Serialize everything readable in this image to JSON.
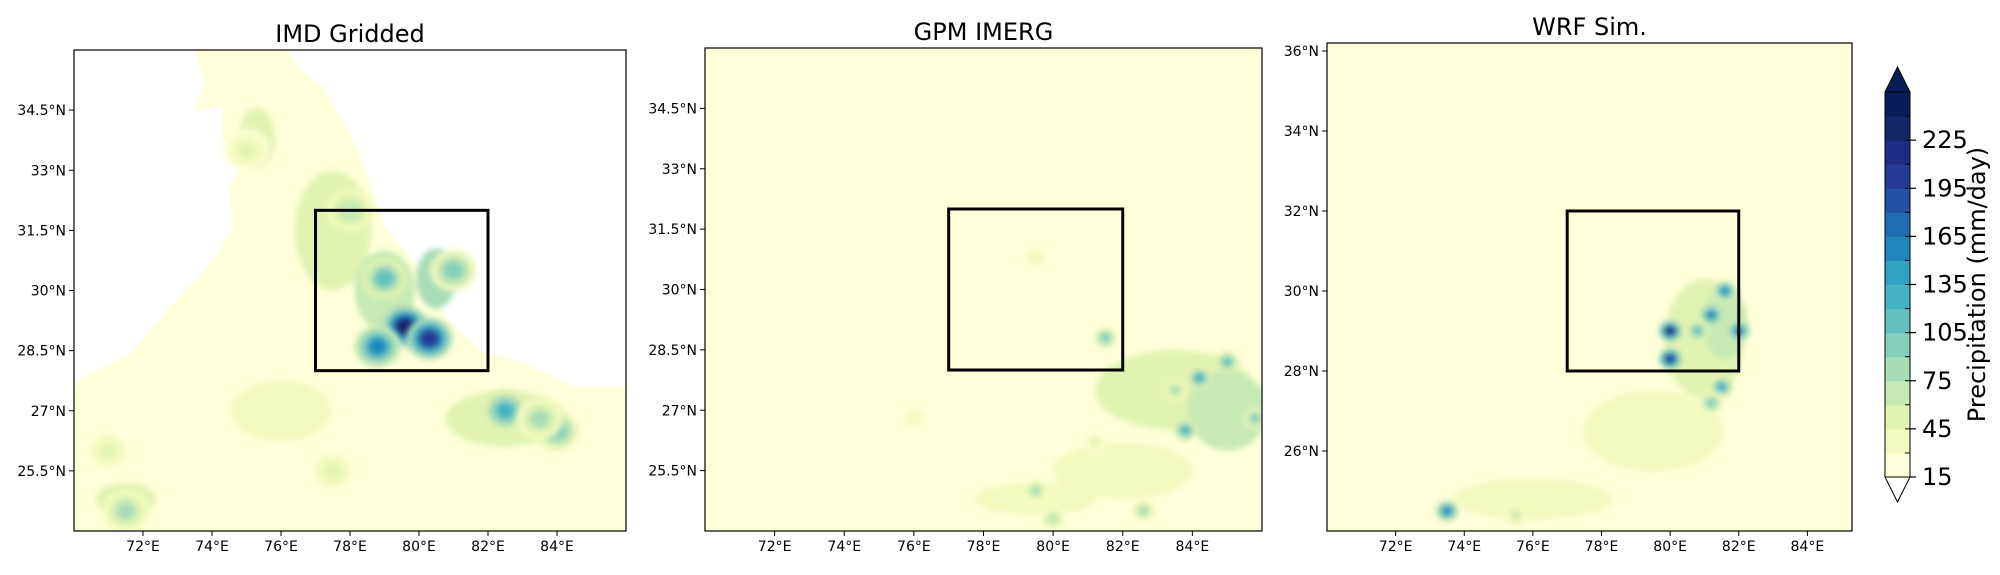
{
  "chart_data": [
    {
      "type": "heatmap",
      "title": "IMD Gridded",
      "xticks": [
        "72°E",
        "74°E",
        "76°E",
        "78°E",
        "80°E",
        "82°E",
        "84°E"
      ],
      "yticks": [
        "34.5°N",
        "33°N",
        "31.5°N",
        "30°N",
        "28.5°N",
        "27°N",
        "25.5°N"
      ],
      "box": {
        "lon": [
          77,
          82
        ],
        "lat": [
          28,
          32
        ]
      },
      "land_mask": "precipitation shown only over Indian territory; area outside left white",
      "hotspots": [
        {
          "lon": 79.6,
          "lat": 29.1,
          "value": 225
        },
        {
          "lon": 80.3,
          "lat": 28.8,
          "value": 200
        },
        {
          "lon": 78.8,
          "lat": 28.6,
          "value": 150
        },
        {
          "lon": 79.0,
          "lat": 30.3,
          "value": 110
        },
        {
          "lon": 81.0,
          "lat": 30.5,
          "value": 90
        },
        {
          "lon": 78.0,
          "lat": 32.0,
          "value": 70
        },
        {
          "lon": 82.5,
          "lat": 27.0,
          "value": 120
        },
        {
          "lon": 84.0,
          "lat": 26.5,
          "value": 100
        },
        {
          "lon": 83.5,
          "lat": 26.8,
          "value": 80
        },
        {
          "lon": 75.0,
          "lat": 33.5,
          "value": 45
        },
        {
          "lon": 71.5,
          "lat": 24.5,
          "value": 80
        },
        {
          "lon": 71.0,
          "lat": 26.0,
          "value": 50
        },
        {
          "lon": 77.5,
          "lat": 25.5,
          "value": 50
        }
      ]
    },
    {
      "type": "heatmap",
      "title": "GPM IMERG",
      "xticks": [
        "72°E",
        "74°E",
        "76°E",
        "78°E",
        "80°E",
        "82°E",
        "84°E"
      ],
      "yticks": [
        "34.5°N",
        "33°N",
        "31.5°N",
        "30°N",
        "28.5°N",
        "27°N",
        "25.5°N"
      ],
      "box": {
        "lon": [
          77,
          82
        ],
        "lat": [
          28,
          32
        ]
      },
      "hotspots": [
        {
          "lon": 84.2,
          "lat": 27.8,
          "value": 130
        },
        {
          "lon": 85.0,
          "lat": 28.2,
          "value": 110
        },
        {
          "lon": 83.8,
          "lat": 26.5,
          "value": 120
        },
        {
          "lon": 85.8,
          "lat": 26.8,
          "value": 90
        },
        {
          "lon": 83.5,
          "lat": 27.5,
          "value": 80
        },
        {
          "lon": 81.5,
          "lat": 28.8,
          "value": 100
        },
        {
          "lon": 79.5,
          "lat": 25.0,
          "value": 75
        },
        {
          "lon": 80.0,
          "lat": 24.3,
          "value": 70
        },
        {
          "lon": 82.6,
          "lat": 24.5,
          "value": 80
        },
        {
          "lon": 81.2,
          "lat": 26.2,
          "value": 50
        },
        {
          "lon": 76.0,
          "lat": 26.8,
          "value": 40
        },
        {
          "lon": 79.5,
          "lat": 30.8,
          "value": 40
        }
      ]
    },
    {
      "type": "heatmap",
      "title": "WRF Sim.",
      "xticks": [
        "72°E",
        "74°E",
        "76°E",
        "78°E",
        "80°E",
        "82°E",
        "84°E"
      ],
      "yticks": [
        "36°N",
        "34°N",
        "32°N",
        "30°N",
        "28°N",
        "26°N"
      ],
      "box": {
        "lon": [
          77,
          82
        ],
        "lat": [
          28,
          32
        ]
      },
      "hotspots": [
        {
          "lon": 80.0,
          "lat": 29.0,
          "value": 210
        },
        {
          "lon": 80.0,
          "lat": 28.3,
          "value": 200
        },
        {
          "lon": 81.2,
          "lat": 29.4,
          "value": 150
        },
        {
          "lon": 81.6,
          "lat": 30.0,
          "value": 140
        },
        {
          "lon": 82.0,
          "lat": 29.0,
          "value": 150
        },
        {
          "lon": 81.5,
          "lat": 27.6,
          "value": 130
        },
        {
          "lon": 80.8,
          "lat": 29.0,
          "value": 110
        },
        {
          "lon": 81.2,
          "lat": 27.2,
          "value": 90
        },
        {
          "lon": 73.5,
          "lat": 24.5,
          "value": 150
        },
        {
          "lon": 75.5,
          "lat": 24.4,
          "value": 60
        }
      ]
    }
  ],
  "colorbar": {
    "label": "Precipitation (mm/day)",
    "ticks": [
      "15",
      "45",
      "75",
      "105",
      "135",
      "165",
      "195",
      "225"
    ],
    "levels": [
      15,
      30,
      45,
      60,
      75,
      90,
      105,
      120,
      135,
      150,
      165,
      180,
      195,
      210,
      225,
      240
    ],
    "colors": [
      "#ffffd9",
      "#f3fabf",
      "#e1f3b2",
      "#c7e9b4",
      "#a9ddb7",
      "#86d0bb",
      "#62c2bf",
      "#45b4c2",
      "#2ea3c2",
      "#1e88bc",
      "#206cb0",
      "#2351a4",
      "#253a97",
      "#1d2c84",
      "#132669",
      "#081d58"
    ],
    "extend": "both"
  }
}
